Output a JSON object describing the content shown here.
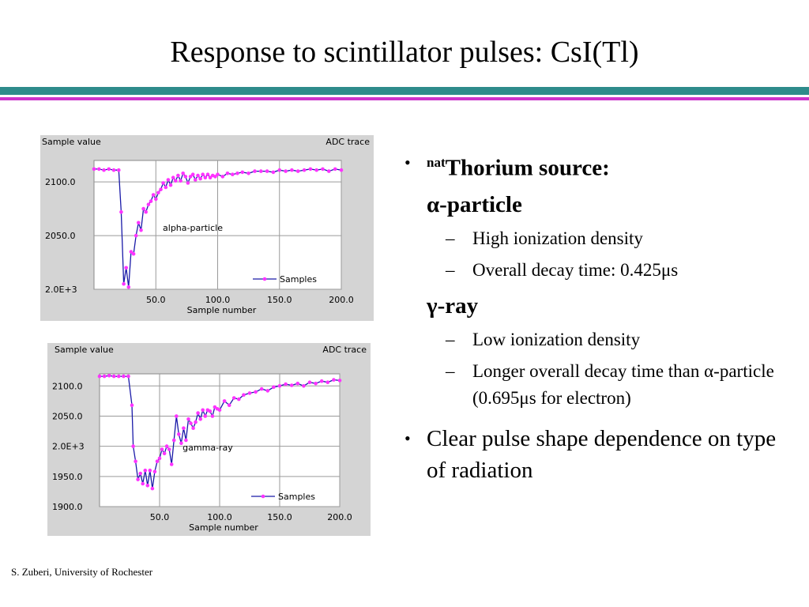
{
  "slide": {
    "title": "Response to scintillator pulses: CsI(Tl)",
    "footer": "S. Zuberi, University of Rochester"
  },
  "bullets": {
    "b1_sup": "nat",
    "b1_text": "Thorium source:",
    "alpha_head": "α-particle",
    "alpha_items": [
      "High ionization density",
      "Overall decay time: 0.425μs"
    ],
    "gamma_head": "γ-ray",
    "gamma_items": [
      "Low ionization density",
      "Longer overall decay time than α-particle (0.695μs for electron)"
    ],
    "b2_text": "Clear  pulse shape dependence on type of radiation"
  },
  "colors": {
    "rule_teal": "#2e8b8b",
    "rule_magenta": "#cc33cc",
    "chart_bg": "#d4d4d4",
    "series_line": "#1a1aa8",
    "series_marker": "#ff33ff"
  },
  "chart_data": [
    {
      "type": "line",
      "title": "ADC trace",
      "ylabel": "Sample value",
      "xlabel": "Sample number",
      "annotation": "alpha-particle",
      "legend": "Samples",
      "legend_position": "bottom-right",
      "grid": true,
      "xlim": [
        0,
        200
      ],
      "ylim": [
        2000,
        2120
      ],
      "xticks": [
        50,
        100,
        150,
        200
      ],
      "xtick_labels": [
        "50.0",
        "100.0",
        "150.0",
        "200.0"
      ],
      "yticks": [
        2000,
        2050,
        2100
      ],
      "ytick_labels": [
        "2.0E+3",
        "2050.0",
        "2100.0"
      ],
      "series": [
        {
          "name": "Samples",
          "x": [
            0,
            4,
            8,
            12,
            16,
            20,
            22,
            24,
            26,
            28,
            30,
            32,
            34,
            36,
            38,
            40,
            42,
            44,
            46,
            48,
            50,
            52,
            54,
            56,
            58,
            60,
            62,
            64,
            66,
            68,
            70,
            72,
            74,
            76,
            78,
            80,
            82,
            84,
            86,
            88,
            90,
            92,
            94,
            96,
            98,
            100,
            104,
            108,
            112,
            116,
            120,
            125,
            130,
            135,
            140,
            145,
            150,
            155,
            160,
            165,
            170,
            175,
            180,
            185,
            190,
            195,
            200
          ],
          "y": [
            2112,
            2112,
            2111,
            2112,
            2111,
            2111,
            2072,
            2005,
            2020,
            2002,
            2035,
            2033,
            2050,
            2062,
            2055,
            2075,
            2072,
            2079,
            2082,
            2088,
            2084,
            2090,
            2093,
            2099,
            2095,
            2102,
            2097,
            2104,
            2101,
            2106,
            2101,
            2108,
            2105,
            2099,
            2105,
            2107,
            2102,
            2106,
            2103,
            2107,
            2104,
            2107,
            2104,
            2106,
            2105,
            2107,
            2105,
            2108,
            2107,
            2108,
            2109,
            2108,
            2110,
            2110,
            2110,
            2109,
            2111,
            2110,
            2111,
            2110,
            2111,
            2112,
            2111,
            2112,
            2110,
            2112,
            2111
          ]
        }
      ]
    },
    {
      "type": "line",
      "title": "ADC trace",
      "ylabel": "Sample value",
      "xlabel": "Sample number",
      "annotation": "gamma-ray",
      "legend": "Samples",
      "legend_position": "bottom-right",
      "grid": true,
      "xlim": [
        0,
        200
      ],
      "ylim": [
        1900,
        2120
      ],
      "xticks": [
        50,
        100,
        150,
        200
      ],
      "xtick_labels": [
        "50.0",
        "100.0",
        "150.0",
        "200.0"
      ],
      "yticks": [
        1900,
        1950,
        2000,
        2050,
        2100
      ],
      "ytick_labels": [
        "1900.0",
        "1950.0",
        "2.0E+3",
        "2050.0",
        "2100.0"
      ],
      "series": [
        {
          "name": "Samples",
          "x": [
            0,
            4,
            8,
            12,
            16,
            20,
            24,
            27,
            28,
            30,
            32,
            34,
            36,
            38,
            40,
            42,
            44,
            46,
            48,
            50,
            52,
            54,
            56,
            58,
            60,
            62,
            64,
            66,
            68,
            70,
            72,
            74,
            76,
            78,
            80,
            82,
            84,
            86,
            88,
            90,
            92,
            94,
            96,
            98,
            100,
            104,
            108,
            112,
            116,
            120,
            125,
            130,
            135,
            140,
            145,
            150,
            155,
            160,
            165,
            170,
            175,
            180,
            185,
            190,
            195,
            200
          ],
          "y": [
            2116,
            2116,
            2117,
            2116,
            2116,
            2116,
            2116,
            2068,
            2000,
            1975,
            1945,
            1955,
            1938,
            1960,
            1935,
            1960,
            1930,
            1958,
            1975,
            1980,
            1995,
            1988,
            2000,
            1995,
            1970,
            2010,
            2050,
            2020,
            2005,
            2030,
            2010,
            2045,
            2038,
            2030,
            2040,
            2055,
            2045,
            2060,
            2050,
            2060,
            2058,
            2050,
            2065,
            2062,
            2060,
            2075,
            2068,
            2080,
            2078,
            2085,
            2088,
            2090,
            2095,
            2092,
            2098,
            2100,
            2103,
            2101,
            2104,
            2100,
            2106,
            2104,
            2108,
            2106,
            2110,
            2109
          ]
        }
      ]
    }
  ]
}
